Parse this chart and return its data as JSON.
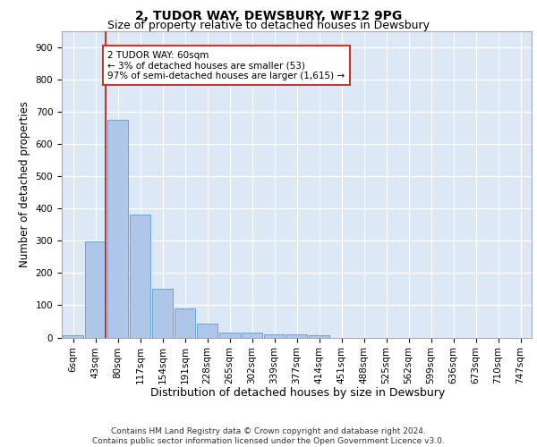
{
  "title": "2, TUDOR WAY, DEWSBURY, WF12 9PG",
  "subtitle": "Size of property relative to detached houses in Dewsbury",
  "xlabel": "Distribution of detached houses by size in Dewsbury",
  "ylabel": "Number of detached properties",
  "bar_labels": [
    "6sqm",
    "43sqm",
    "80sqm",
    "117sqm",
    "154sqm",
    "191sqm",
    "228sqm",
    "265sqm",
    "302sqm",
    "339sqm",
    "377sqm",
    "414sqm",
    "451sqm",
    "488sqm",
    "525sqm",
    "562sqm",
    "599sqm",
    "636sqm",
    "673sqm",
    "710sqm",
    "747sqm"
  ],
  "bar_values": [
    8,
    298,
    675,
    382,
    152,
    90,
    42,
    16,
    15,
    10,
    10,
    7,
    0,
    0,
    0,
    0,
    0,
    0,
    0,
    0,
    0
  ],
  "bar_color": "#aec6e8",
  "bar_edge_color": "#5b9bd5",
  "background_color": "#dce8f5",
  "grid_color": "#ffffff",
  "vline_x": 1.47,
  "vline_color": "#c0392b",
  "annotation_text": "2 TUDOR WAY: 60sqm\n← 3% of detached houses are smaller (53)\n97% of semi-detached houses are larger (1,615) →",
  "annotation_box_color": "#ffffff",
  "annotation_box_edge": "#c0392b",
  "ylim": [
    0,
    950
  ],
  "yticks": [
    0,
    100,
    200,
    300,
    400,
    500,
    600,
    700,
    800,
    900
  ],
  "footer_text": "Contains HM Land Registry data © Crown copyright and database right 2024.\nContains public sector information licensed under the Open Government Licence v3.0.",
  "title_fontsize": 10,
  "subtitle_fontsize": 9,
  "axis_label_fontsize": 8.5,
  "tick_fontsize": 7.5,
  "annotation_fontsize": 7.5,
  "footer_fontsize": 6.5
}
